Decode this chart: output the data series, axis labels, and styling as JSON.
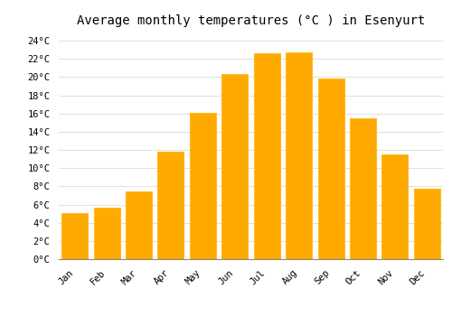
{
  "title": "Average monthly temperatures (°C ) in Esenyurt",
  "months": [
    "Jan",
    "Feb",
    "Mar",
    "Apr",
    "May",
    "Jun",
    "Jul",
    "Aug",
    "Sep",
    "Oct",
    "Nov",
    "Dec"
  ],
  "values": [
    5.1,
    5.7,
    7.4,
    11.8,
    16.1,
    20.3,
    22.6,
    22.7,
    19.8,
    15.5,
    11.5,
    7.7
  ],
  "bar_color": "#FFAA00",
  "bar_edge_color": "#FFBB22",
  "ylim": [
    0,
    25
  ],
  "yticks": [
    0,
    2,
    4,
    6,
    8,
    10,
    12,
    14,
    16,
    18,
    20,
    22,
    24
  ],
  "background_color": "#FFFFFF",
  "grid_color": "#E0E0E0",
  "title_fontsize": 10,
  "tick_fontsize": 7.5
}
